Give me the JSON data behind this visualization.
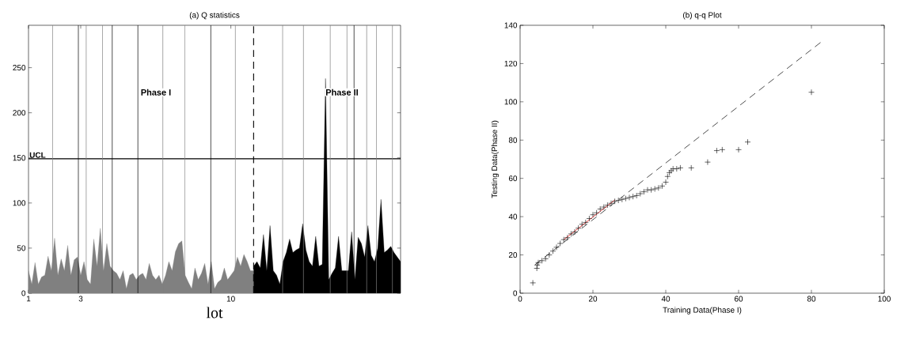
{
  "chart_data": [
    {
      "type": "area",
      "title": "(a) Q statistics",
      "xlabel": "lot",
      "categories": [
        "1",
        null,
        null,
        null,
        null,
        null,
        null,
        null,
        null,
        null,
        null,
        null,
        null,
        null,
        null,
        null,
        "3",
        null,
        null,
        null,
        null,
        null,
        null,
        null,
        null,
        null,
        null,
        null,
        null,
        null,
        null,
        null,
        null,
        null,
        null,
        null,
        null,
        null,
        null,
        null,
        null,
        null,
        null,
        null,
        null,
        null,
        null,
        null,
        null,
        null,
        null,
        null,
        null,
        null,
        null,
        null,
        null,
        null,
        null,
        null,
        null,
        null,
        "10",
        null,
        null,
        null,
        null,
        null,
        null,
        null,
        null,
        null,
        null,
        null,
        null,
        null,
        null,
        null,
        null,
        null,
        null,
        null,
        null,
        null,
        null,
        null,
        null,
        null,
        null,
        null,
        null,
        null,
        null,
        null,
        null,
        null,
        null,
        null,
        null,
        null,
        null,
        null,
        null,
        null,
        null,
        null,
        null,
        null,
        null,
        null,
        null,
        null,
        null,
        null,
        null
      ],
      "ylim": [
        0,
        297
      ],
      "yticks": [
        0,
        50,
        100,
        150,
        200,
        250
      ],
      "series": [
        {
          "color": "#808080",
          "values": [
            25,
            10,
            34,
            10,
            18,
            20,
            41,
            25,
            61,
            20,
            38,
            25,
            53,
            20,
            37,
            40,
            20,
            35,
            15,
            10,
            60,
            30,
            72,
            25,
            55,
            30,
            25,
            22,
            15,
            25,
            5,
            20,
            22,
            15,
            20,
            22,
            15,
            33,
            20,
            15,
            20,
            10,
            20,
            35,
            25,
            46,
            55,
            58,
            20,
            12,
            5,
            28,
            15,
            22,
            33,
            10,
            35,
            5,
            12,
            15,
            28,
            15,
            20,
            25,
            40,
            30,
            43,
            35,
            25,
            25,
            null,
            null,
            null,
            null,
            null,
            null,
            null,
            null,
            null,
            null,
            null,
            null,
            null,
            null,
            null,
            null,
            null,
            null,
            null,
            null,
            null,
            null,
            null,
            null,
            null,
            null,
            null,
            null,
            null,
            null,
            null,
            null,
            null,
            null,
            null,
            null,
            null,
            null,
            null,
            null,
            null,
            null,
            null,
            null,
            null
          ]
        },
        {
          "color": "#000000",
          "values": [
            null,
            null,
            null,
            null,
            null,
            null,
            null,
            null,
            null,
            null,
            null,
            null,
            null,
            null,
            null,
            null,
            null,
            null,
            null,
            null,
            null,
            null,
            null,
            null,
            null,
            null,
            null,
            null,
            null,
            null,
            null,
            null,
            null,
            null,
            null,
            null,
            null,
            null,
            null,
            null,
            null,
            null,
            null,
            null,
            null,
            null,
            null,
            null,
            null,
            null,
            null,
            null,
            null,
            null,
            null,
            null,
            null,
            null,
            null,
            null,
            null,
            null,
            null,
            null,
            null,
            null,
            null,
            null,
            null,
            30,
            35,
            28,
            65,
            25,
            75,
            25,
            20,
            10,
            35,
            45,
            60,
            45,
            48,
            50,
            77,
            48,
            35,
            30,
            63,
            30,
            32,
            238,
            15,
            22,
            28,
            63,
            25,
            25,
            25,
            68,
            15,
            62,
            55,
            40,
            75,
            42,
            35,
            50,
            104,
            45,
            48,
            52,
            45,
            40,
            35
          ]
        }
      ],
      "ref_lines": [
        {
          "axis": "y",
          "value": 149,
          "label": "UCL",
          "color": "#000000"
        }
      ],
      "annotations": [
        "Phase I",
        "Phase II"
      ]
    },
    {
      "type": "scatter",
      "title": "(b) q-q Plot",
      "xlabel": "Training Data(Phase I)",
      "ylabel": "Testing Data(Phase II)",
      "xlim": [
        0,
        100
      ],
      "xticks": [
        0,
        20,
        40,
        60,
        80,
        100
      ],
      "ylim": [
        0,
        140
      ],
      "yticks": [
        0,
        20,
        40,
        60,
        80,
        100,
        120,
        140
      ],
      "series": [
        {
          "color": "#000000",
          "marker": "cross",
          "x": [
            3.5,
            4.6,
            4.7,
            5,
            6,
            7,
            8,
            9,
            10,
            11,
            12,
            13,
            14,
            15,
            16,
            17,
            18,
            19,
            20,
            21,
            22,
            23,
            24,
            25,
            26,
            27,
            28,
            29,
            30,
            31,
            32,
            33,
            34,
            35,
            36,
            37,
            38,
            39,
            40,
            40.5,
            41,
            41.5,
            42,
            43,
            44,
            47,
            51.5,
            54,
            55.5,
            60,
            62.5,
            80
          ],
          "values": [
            5.4,
            13,
            14.7,
            16,
            17,
            18,
            20,
            22,
            24,
            26,
            28,
            29,
            31,
            32,
            34,
            36,
            37,
            39,
            41,
            42,
            44,
            45,
            46,
            47,
            48,
            48.5,
            49,
            49.5,
            50,
            50.5,
            51,
            52,
            53,
            54,
            54,
            54.5,
            55,
            56,
            58,
            61,
            63,
            64,
            65,
            65,
            65.5,
            65.5,
            68.5,
            74.5,
            75,
            75,
            79,
            105
          ]
        },
        {
          "type": "line",
          "color": "#000000",
          "line_style": "dashed",
          "x": [
            3.5,
            82.5
          ],
          "values": [
            14,
            131
          ]
        },
        {
          "type": "line",
          "color": "#ff0000",
          "line_style": "solid",
          "x": [
            12,
            26
          ],
          "values": [
            28,
            48.7
          ]
        }
      ]
    }
  ]
}
